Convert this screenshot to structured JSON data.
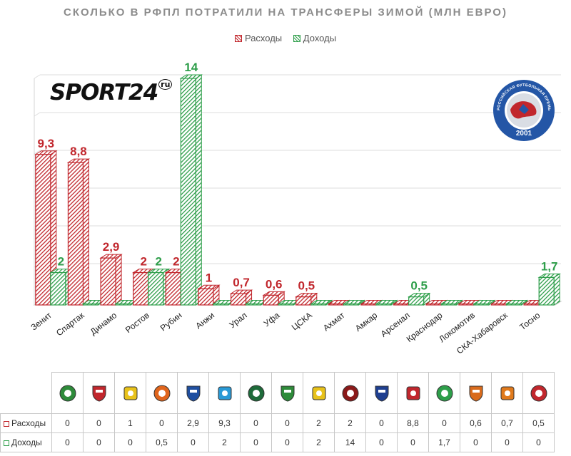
{
  "chart_data": {
    "type": "bar",
    "title": "СКОЛЬКО В РФПЛ ПОТРАТИЛИ НА ТРАНСФЕРЫ ЗИМОЙ (МЛН ЕВРО)",
    "xlabel": "",
    "ylabel": "",
    "ylim": [
      0,
      14
    ],
    "grid": true,
    "legend": "top-center",
    "categories": [
      "Зенит",
      "Спартак",
      "Динамо",
      "Ростов",
      "Рубин",
      "Анжи",
      "Урал",
      "Уфа",
      "ЦСКА",
      "Ахмат",
      "Амкар",
      "Арсенал",
      "Краснодар",
      "Локомотив",
      "СКА-Хабаровск",
      "Тосно"
    ],
    "series": [
      {
        "name": "Расходы",
        "color": "#c1272d",
        "values": [
          9.3,
          8.8,
          2.9,
          2,
          2,
          1,
          0.7,
          0.6,
          0.5,
          0,
          0,
          0,
          0,
          0,
          0,
          0
        ],
        "labels": [
          "9,3",
          "8,8",
          "2,9",
          "2",
          "2",
          "1",
          "0,7",
          "0,6",
          "0,5",
          "",
          "",
          "",
          "",
          "",
          "",
          ""
        ]
      },
      {
        "name": "Доходы",
        "color": "#2e9e4a",
        "values": [
          2,
          0,
          0,
          2,
          14,
          0,
          0,
          0,
          0,
          0,
          0,
          0.5,
          0,
          0,
          0,
          1.7
        ],
        "labels": [
          "2",
          "",
          "",
          "2",
          "14",
          "",
          "",
          "",
          "",
          "",
          "",
          "0,5",
          "",
          "",
          "",
          "1,7"
        ]
      }
    ]
  },
  "brand": {
    "logo_text": "SPORT24",
    "logo_suffix": "ru"
  },
  "emblem": {
    "ring_text": "РОССИЙСКАЯ ФУТБОЛЬНАЯ ПРЕМЬЕР-ЛИГА",
    "year": "2001"
  },
  "table": {
    "row_expenses_label": "Расходы",
    "row_income_label": "Доходы",
    "clubs": [
      {
        "icon": "akhmat-crest",
        "color": "#2e8b3a",
        "expenses": "0",
        "income": "0"
      },
      {
        "icon": "amkar-crest",
        "color": "#c1272d",
        "expenses": "0",
        "income": "0"
      },
      {
        "icon": "anzhi-crest",
        "color": "#e8c21a",
        "expenses": "1",
        "income": "0"
      },
      {
        "icon": "arsenal-crest",
        "color": "#e0651c",
        "expenses": "0",
        "income": "0,5"
      },
      {
        "icon": "dynamo-crest",
        "color": "#1f4fa0",
        "expenses": "2,9",
        "income": "0"
      },
      {
        "icon": "zenit-crest",
        "color": "#2a9ad6",
        "expenses": "9,3",
        "income": "2"
      },
      {
        "icon": "krasnodar-crest",
        "color": "#1e6b3a",
        "expenses": "0",
        "income": "0"
      },
      {
        "icon": "lokomotiv-crest",
        "color": "#2e8b3a",
        "expenses": "0",
        "income": "0"
      },
      {
        "icon": "rostov-crest",
        "color": "#e8c21a",
        "expenses": "2",
        "income": "2"
      },
      {
        "icon": "rubin-crest",
        "color": "#8b1a1a",
        "expenses": "2",
        "income": "14"
      },
      {
        "icon": "ska-khabarovsk-crest",
        "color": "#1f3f8f",
        "expenses": "0",
        "income": "0"
      },
      {
        "icon": "spartak-crest",
        "color": "#c1272d",
        "expenses": "8,8",
        "income": "0"
      },
      {
        "icon": "tosno-crest",
        "color": "#2e9e4a",
        "expenses": "0",
        "income": "1,7"
      },
      {
        "icon": "ufa-crest",
        "color": "#d96b1c",
        "expenses": "0,6",
        "income": "0"
      },
      {
        "icon": "ural-crest",
        "color": "#e07a1c",
        "expenses": "0,7",
        "income": "0"
      },
      {
        "icon": "cska-crest",
        "color": "#c1272d",
        "expenses": "0,5",
        "income": "0"
      }
    ]
  }
}
